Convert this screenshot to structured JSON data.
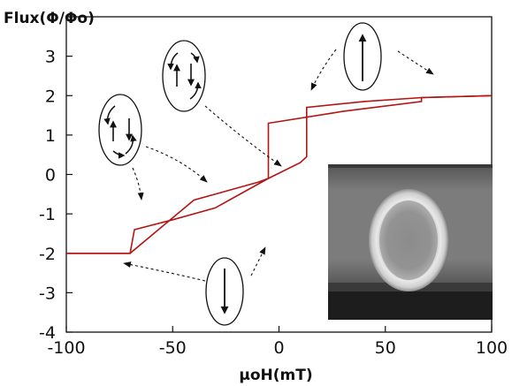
{
  "chart_data": {
    "type": "line",
    "title": "",
    "ylabel": "Flux(Φ/Φo)",
    "xlabel": "μoH(mT)",
    "xlim": [
      -100,
      100
    ],
    "ylim": [
      -4,
      4
    ],
    "x_ticks": [
      -100,
      -50,
      0,
      50,
      100
    ],
    "y_ticks": [
      3,
      2,
      1,
      0,
      -1,
      -2,
      -3,
      -4
    ],
    "line_color": "#b41414",
    "grid": false,
    "legend": "none",
    "series": [
      {
        "branch": "descending",
        "x": [
          100,
          67,
          67,
          30,
          -5,
          -5,
          -10,
          -40,
          -70,
          -100
        ],
        "y": [
          2.0,
          1.95,
          1.85,
          1.6,
          1.3,
          -0.1,
          -0.2,
          -0.65,
          -2.0,
          -2.0
        ]
      },
      {
        "branch": "ascending",
        "x": [
          -100,
          -70,
          -68,
          -50,
          -30,
          -5,
          10,
          13,
          13,
          40,
          67,
          100
        ],
        "y": [
          -2.0,
          -2.0,
          -1.4,
          -1.15,
          -0.85,
          -0.1,
          0.3,
          0.45,
          1.7,
          1.85,
          1.95,
          2.0
        ]
      }
    ],
    "annotations": [
      {
        "type": "vortex-double-arrow",
        "at_x": -78,
        "at_y": 1.2
      },
      {
        "type": "vortex-double-arrow",
        "at_x": -45,
        "at_y": 2.6
      },
      {
        "type": "single-arrow-up",
        "at_x": 40,
        "at_y": 3.0
      },
      {
        "type": "single-arrow-down",
        "at_x": -25,
        "at_y": -3.0
      }
    ],
    "inset": {
      "type": "sem-image",
      "content": "ring micrograph"
    }
  }
}
